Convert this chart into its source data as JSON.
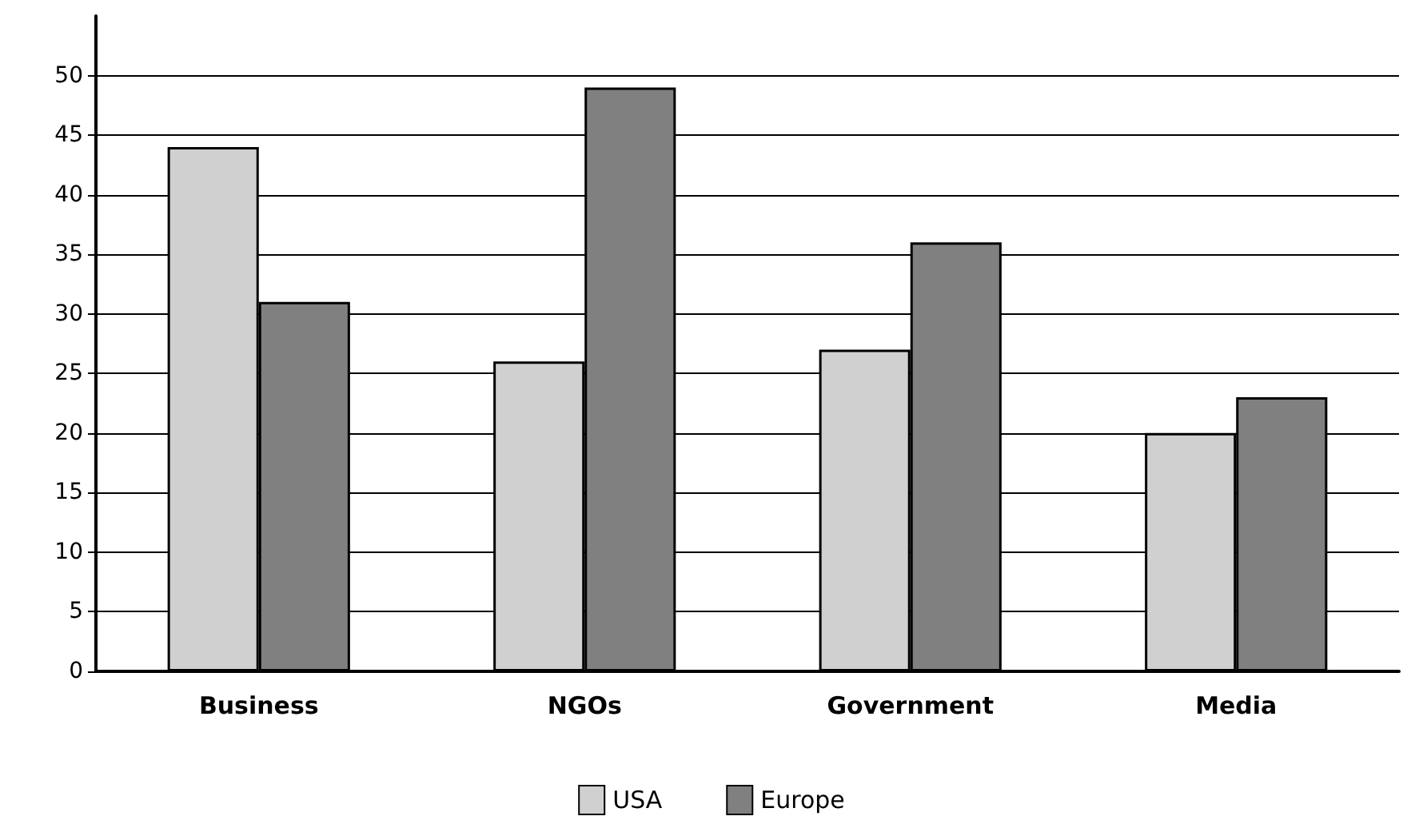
{
  "chart_data": {
    "type": "bar",
    "categories": [
      "Business",
      "NGOs",
      "Government",
      "Media"
    ],
    "series": [
      {
        "name": "USA",
        "color": "#d0d0d0",
        "values": [
          44,
          26,
          27,
          20
        ]
      },
      {
        "name": "Europe",
        "color": "#808080",
        "values": [
          31,
          49,
          36,
          23
        ]
      }
    ],
    "ylim": [
      0,
      55
    ],
    "yticks": [
      0,
      5,
      10,
      15,
      20,
      25,
      30,
      35,
      40,
      45,
      50
    ],
    "grid": "y",
    "legend": "bottom"
  }
}
